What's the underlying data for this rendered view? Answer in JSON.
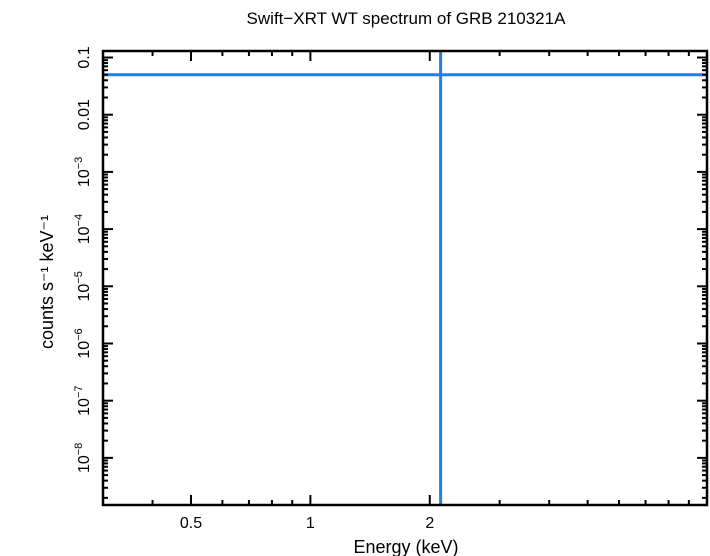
{
  "chart_data": {
    "type": "line",
    "title": "Swift−XRT WT spectrum of GRB 210321A",
    "xlabel": "Energy (keV)",
    "ylabel": "counts s⁻¹ keV⁻¹",
    "x_scale": "log",
    "y_scale": "log",
    "xlim": [
      0.3,
      10
    ],
    "ylim": [
      1.5e-09,
      0.13
    ],
    "x_ticks": [
      {
        "value": 0.5,
        "label": "0.5"
      },
      {
        "value": 1,
        "label": "1"
      },
      {
        "value": 2,
        "label": "2"
      }
    ],
    "y_ticks": [
      {
        "value": 1e-08,
        "base": "10",
        "exp": "−8"
      },
      {
        "value": 1e-07,
        "base": "10",
        "exp": "−7"
      },
      {
        "value": 1e-06,
        "base": "10",
        "exp": "−6"
      },
      {
        "value": 1e-05,
        "base": "10",
        "exp": "−5"
      },
      {
        "value": 0.0001,
        "base": "10",
        "exp": "−4"
      },
      {
        "value": 0.001,
        "base": "10",
        "exp": "−3"
      },
      {
        "value": 0.01,
        "base": "0.01",
        "exp": ""
      },
      {
        "value": 0.1,
        "base": "0.1",
        "exp": ""
      }
    ],
    "series": [
      {
        "values": [
          {
            "x": 0.3,
            "y": 0.05
          },
          {
            "x": 10,
            "y": 0.05
          }
        ]
      },
      {
        "values": [
          {
            "x": 2.13,
            "y": 1.5e-09
          },
          {
            "x": 2.13,
            "y": 0.13
          }
        ]
      }
    ],
    "grid": false,
    "legend": "none",
    "colors": {
      "series": "#1f7fe8",
      "axes": "#000000"
    }
  }
}
